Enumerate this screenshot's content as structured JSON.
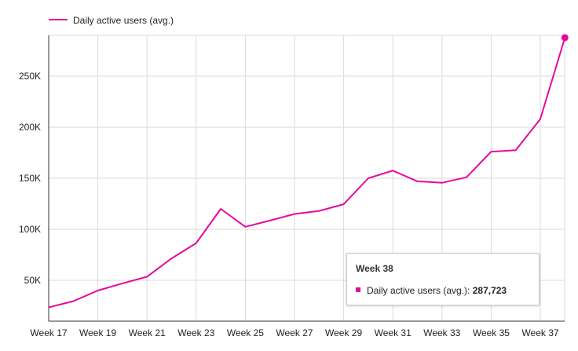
{
  "colors": {
    "series": "#e6089e",
    "grid": "#dadada",
    "axis": "#333333",
    "text": "#222222"
  },
  "chart_data": {
    "type": "line",
    "legend_position": "top-left",
    "grid": true,
    "ylim": [
      10000,
      290000
    ],
    "y_ticks": [
      50000,
      100000,
      150000,
      200000,
      250000
    ],
    "y_tick_labels": [
      "50K",
      "100K",
      "150K",
      "200K",
      "250K"
    ],
    "x_tick_labels": [
      "Week 17",
      "Week 19",
      "Week 21",
      "Week 23",
      "Week 25",
      "Week 27",
      "Week 29",
      "Week 31",
      "Week 33",
      "Week 35",
      "Week 37"
    ],
    "x": [
      "Week 17",
      "Week 18",
      "Week 19",
      "Week 20",
      "Week 21",
      "Week 22",
      "Week 23",
      "Week 24",
      "Week 25",
      "Week 26",
      "Week 27",
      "Week 28",
      "Week 29",
      "Week 30",
      "Week 31",
      "Week 32",
      "Week 33",
      "Week 34",
      "Week 35",
      "Week 36",
      "Week 37",
      "Week 38"
    ],
    "series": [
      {
        "name": "Daily active users (avg.)",
        "values": [
          23500,
          29500,
          40000,
          47000,
          53500,
          71500,
          86500,
          120000,
          102500,
          108500,
          115000,
          118000,
          124500,
          150000,
          157500,
          147000,
          145500,
          151000,
          176000,
          177500,
          208000,
          287723
        ]
      }
    ],
    "tooltip": {
      "title": "Week 38",
      "label": "Daily active users (avg.): ",
      "value": "287,723"
    }
  }
}
